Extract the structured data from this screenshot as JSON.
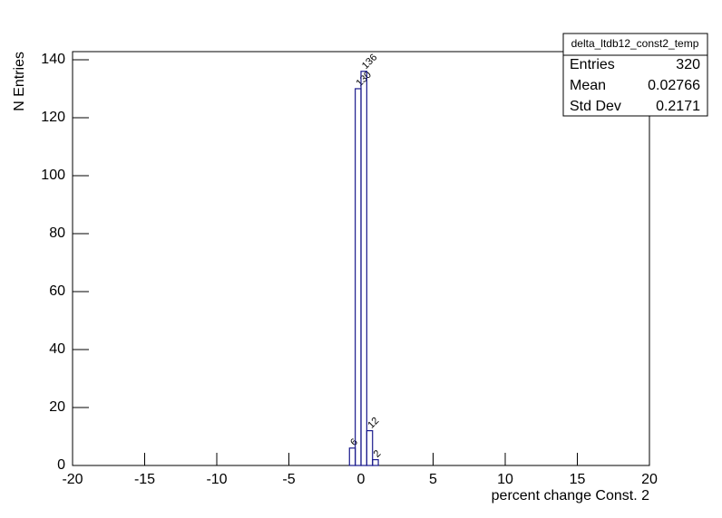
{
  "chart_data": {
    "type": "histogram",
    "x_label": "percent change Const. 2",
    "y_label": "N Entries",
    "bins": [
      -0.8,
      -0.4,
      0,
      0.4,
      0.8,
      1.2
    ],
    "values": [
      6,
      130,
      136,
      12,
      2
    ],
    "color": "#1a1a8c",
    "xlim": [
      -20,
      20
    ],
    "xticks": [
      -20,
      -15,
      -10,
      -5,
      0,
      5,
      10,
      15,
      20
    ],
    "ylim": [
      0,
      142.8
    ],
    "yticks": [
      0,
      20,
      40,
      60,
      80,
      100,
      120,
      140
    ],
    "stats": {
      "title": "delta_ltdb12_const2_temp",
      "rows": [
        [
          "Entries",
          320
        ],
        [
          "Mean",
          0.02766
        ],
        [
          "Std Dev",
          0.2171
        ]
      ]
    }
  }
}
